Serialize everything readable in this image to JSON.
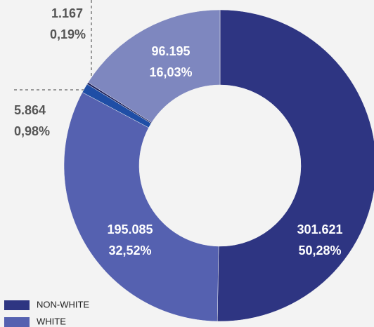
{
  "chart_data": {
    "type": "donut",
    "categories": [
      "NON-WHITE",
      "WHITE",
      null,
      null,
      null
    ],
    "values": [
      301621,
      195085,
      5864,
      1167,
      96195
    ],
    "value_labels": [
      "301.621",
      "195.085",
      "5.864",
      "1.167",
      "96.195"
    ],
    "percents": [
      50.28,
      32.52,
      0.98,
      0.19,
      16.03
    ],
    "percent_labels": [
      "50,28%",
      "32,52%",
      "0,98%",
      "0,19%",
      "16,03%"
    ],
    "colors": [
      "#2e3582",
      "#5561b0",
      "#1f4ea6",
      "#1b1f5c",
      "#7e87bf"
    ]
  }
}
